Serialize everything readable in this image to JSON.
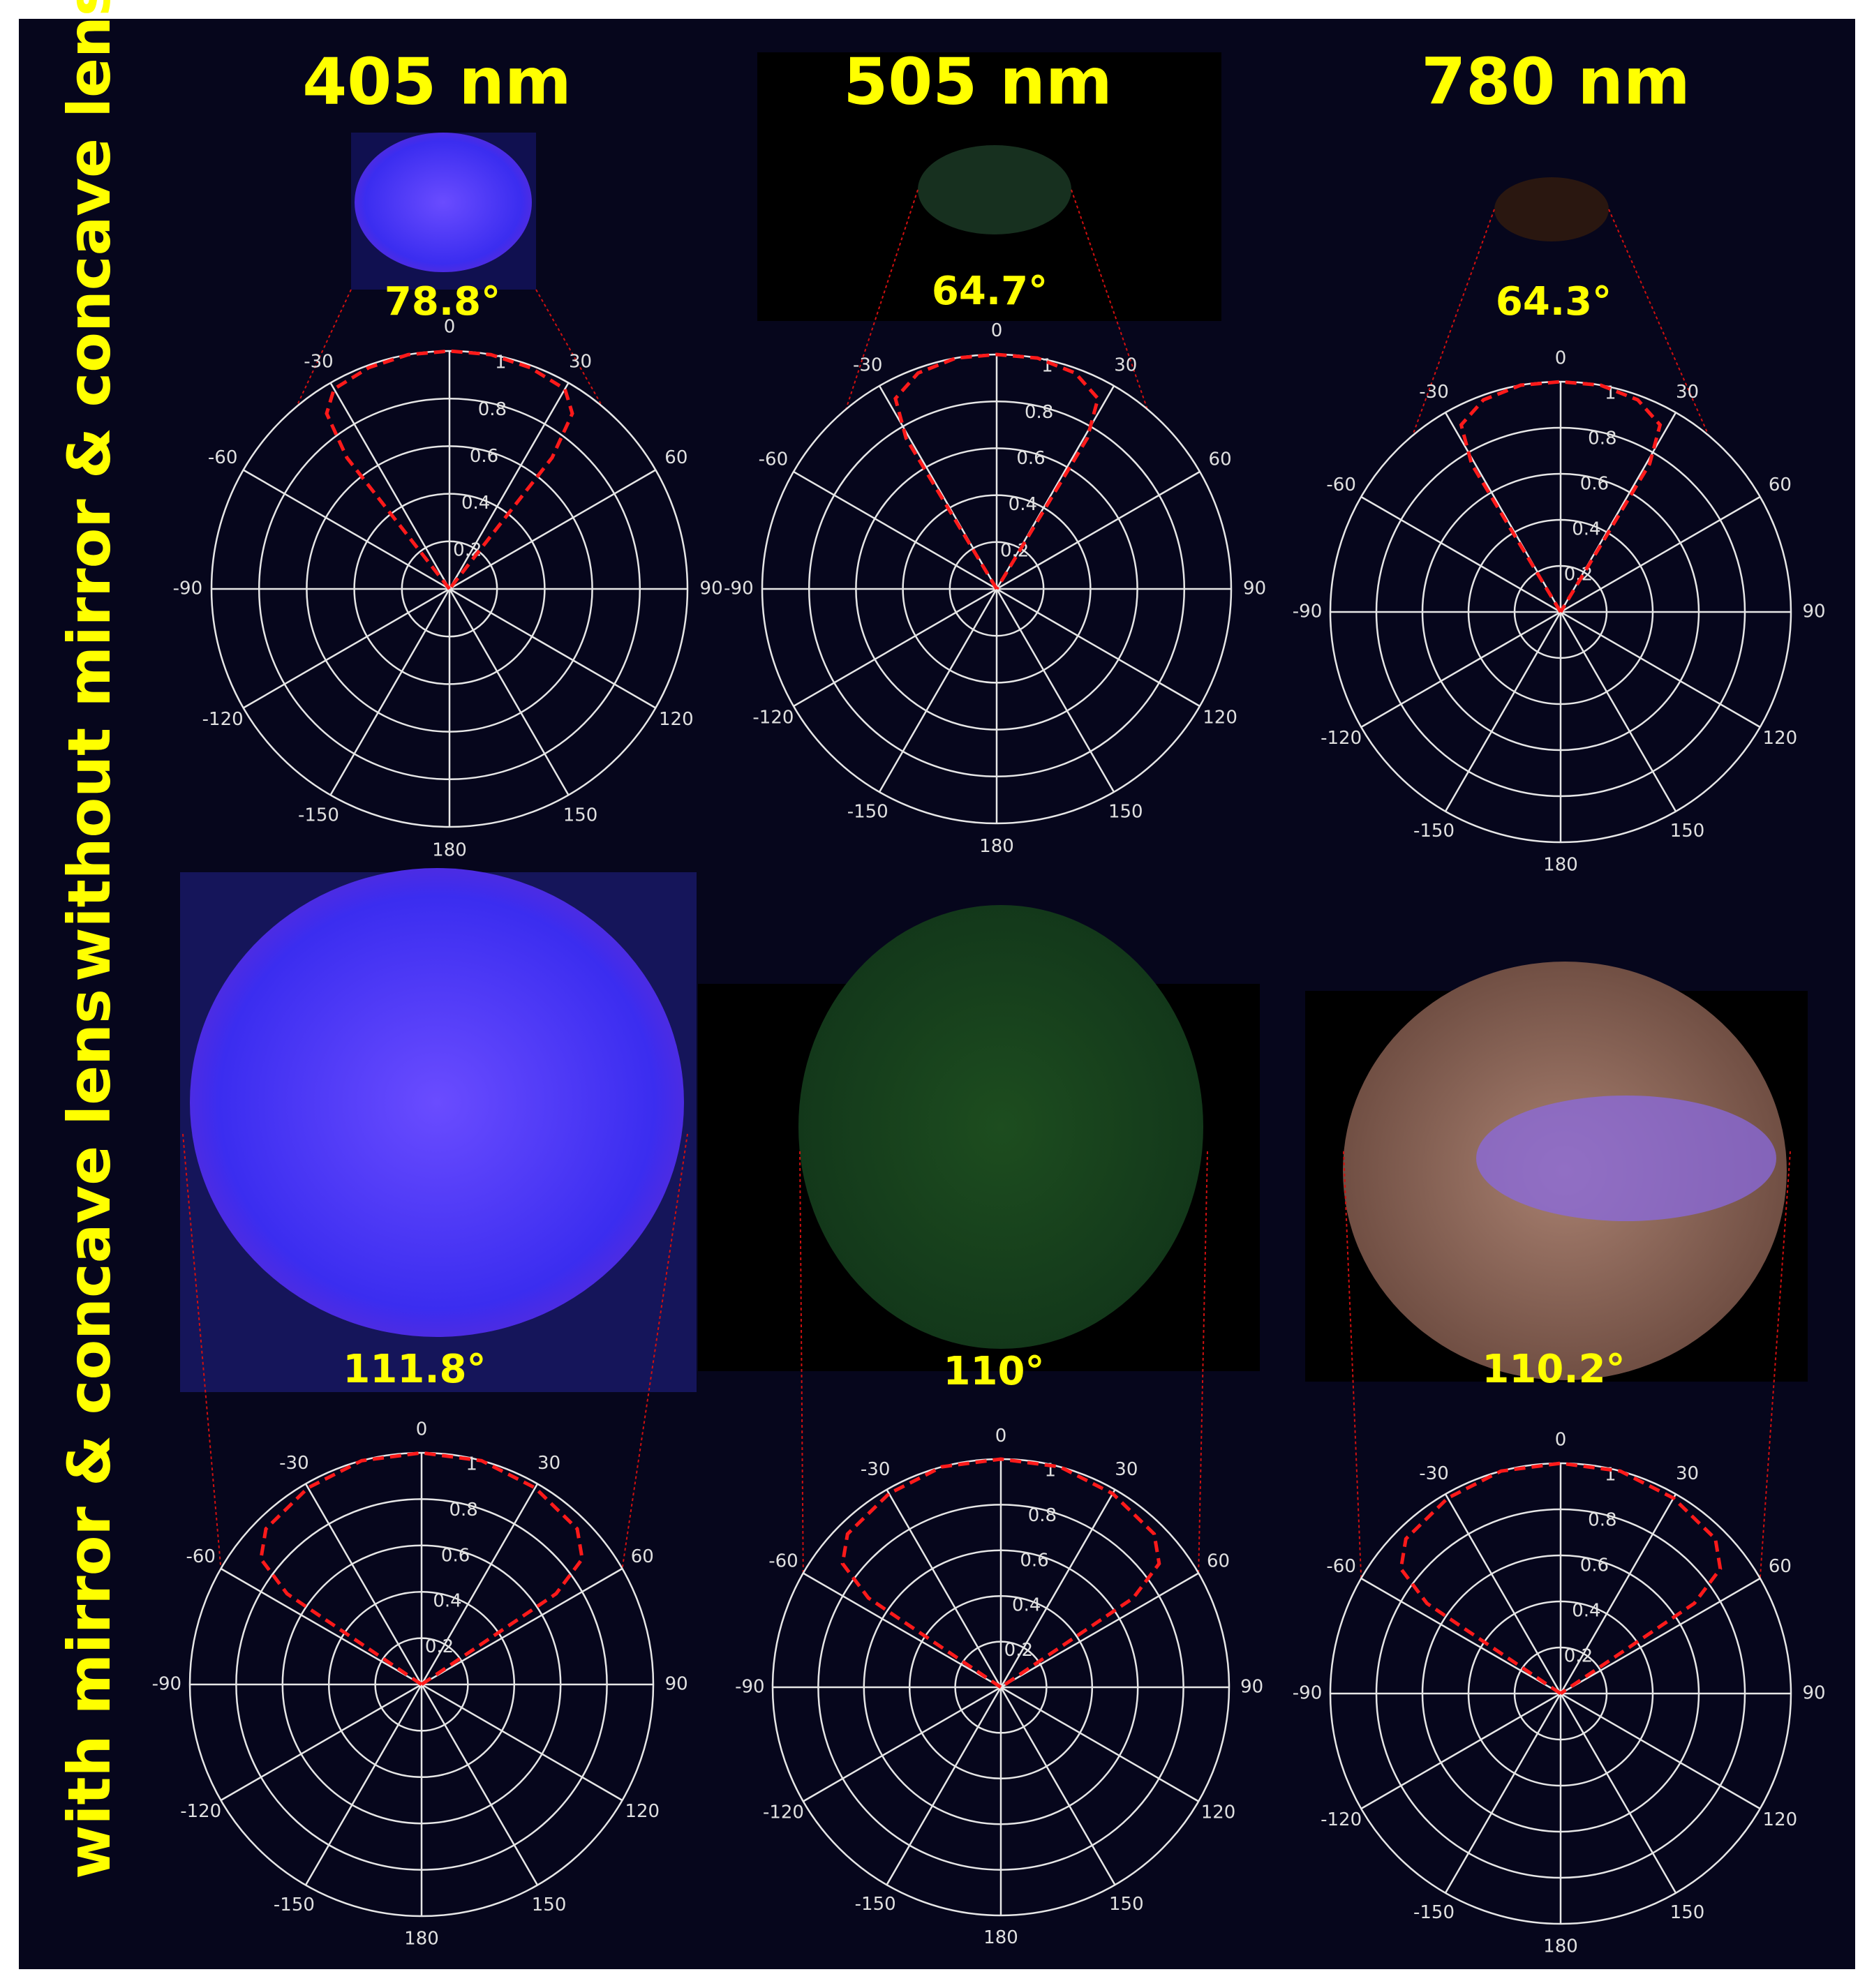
{
  "column_titles": [
    "405 nm",
    "505 nm",
    "780 nm"
  ],
  "row_titles": [
    "without mirror & concave lens",
    "with mirror & concave lens"
  ],
  "chart_data": [
    {
      "type": "polar",
      "annotation": "78.8°",
      "rlim": [
        0,
        1
      ],
      "rticks": [
        0.2,
        0.4,
        0.6,
        0.8,
        1
      ],
      "theta_ticks": [
        0,
        30,
        60,
        90,
        120,
        150,
        180,
        -150,
        -120,
        -90,
        -60,
        -30
      ],
      "grid": true,
      "series": [
        {
          "color": "#ff1a1a",
          "theta": [
            -40,
            -38,
            -35,
            -30,
            -20,
            -10,
            0,
            10,
            20,
            30,
            35,
            38,
            40
          ],
          "values": [
            0,
            0.7,
            0.9,
            0.97,
            0.99,
            1,
            1,
            1,
            0.99,
            0.97,
            0.9,
            0.7,
            0
          ]
        }
      ]
    },
    {
      "type": "polar",
      "annotation": "64.7°",
      "rlim": [
        0,
        1
      ],
      "rticks": [
        0.2,
        0.4,
        0.6,
        0.8,
        1
      ],
      "theta_ticks": [
        0,
        30,
        60,
        90,
        120,
        150,
        180,
        -150,
        -120,
        -90,
        -60,
        -30
      ],
      "grid": true,
      "series": [
        {
          "color": "#ff1a1a",
          "theta": [
            -33,
            -31,
            -28,
            -20,
            -10,
            0,
            10,
            20,
            28,
            31,
            33
          ],
          "values": [
            0,
            0.75,
            0.92,
            0.98,
            1,
            1,
            1,
            0.98,
            0.92,
            0.75,
            0
          ]
        }
      ]
    },
    {
      "type": "polar",
      "annotation": "64.3°",
      "rlim": [
        0,
        1
      ],
      "rticks": [
        0.2,
        0.4,
        0.6,
        0.8,
        1
      ],
      "theta_ticks": [
        0,
        30,
        60,
        90,
        120,
        150,
        180,
        -150,
        -120,
        -90,
        -60,
        -30
      ],
      "grid": true,
      "series": [
        {
          "color": "#ff1a1a",
          "theta": [
            -33,
            -31,
            -28,
            -20,
            -10,
            0,
            10,
            20,
            28,
            31,
            33
          ],
          "values": [
            0,
            0.75,
            0.92,
            0.98,
            1,
            1,
            1,
            0.98,
            0.92,
            0.75,
            0
          ]
        }
      ]
    },
    {
      "type": "polar",
      "annotation": "111.8°",
      "rlim": [
        0,
        1
      ],
      "rticks": [
        0.2,
        0.4,
        0.6,
        0.8,
        1
      ],
      "theta_ticks": [
        0,
        30,
        60,
        90,
        120,
        150,
        180,
        -150,
        -120,
        -90,
        -60,
        -30
      ],
      "grid": true,
      "series": [
        {
          "color": "#ff1a1a",
          "theta": [
            -58,
            -56,
            -52,
            -45,
            -30,
            -15,
            0,
            15,
            30,
            45,
            52,
            56,
            58
          ],
          "values": [
            0,
            0.7,
            0.88,
            0.95,
            0.98,
            1,
            1,
            1,
            0.98,
            0.95,
            0.88,
            0.7,
            0
          ]
        }
      ]
    },
    {
      "type": "polar",
      "annotation": "110°",
      "rlim": [
        0,
        1
      ],
      "rticks": [
        0.2,
        0.4,
        0.6,
        0.8,
        1
      ],
      "theta_ticks": [
        0,
        30,
        60,
        90,
        120,
        150,
        180,
        -150,
        -120,
        -90,
        -60,
        -30
      ],
      "grid": true,
      "series": [
        {
          "color": "#ff1a1a",
          "theta": [
            -58,
            -56,
            -52,
            -45,
            -30,
            -15,
            0,
            15,
            30,
            45,
            52,
            56,
            58
          ],
          "values": [
            0,
            0.7,
            0.88,
            0.95,
            0.98,
            1,
            1,
            1,
            0.98,
            0.95,
            0.88,
            0.7,
            0
          ]
        }
      ]
    },
    {
      "type": "polar",
      "annotation": "110.2°",
      "rlim": [
        0,
        1
      ],
      "rticks": [
        0.2,
        0.4,
        0.6,
        0.8,
        1
      ],
      "theta_ticks": [
        0,
        30,
        60,
        90,
        120,
        150,
        180,
        -150,
        -120,
        -90,
        -60,
        -30
      ],
      "grid": true,
      "series": [
        {
          "color": "#ff1a1a",
          "theta": [
            -58,
            -56,
            -52,
            -45,
            -30,
            -15,
            0,
            15,
            30,
            45,
            52,
            56,
            58
          ],
          "values": [
            0,
            0.7,
            0.88,
            0.95,
            0.98,
            1,
            1,
            1,
            0.98,
            0.95,
            0.88,
            0.7,
            0
          ]
        }
      ]
    }
  ]
}
